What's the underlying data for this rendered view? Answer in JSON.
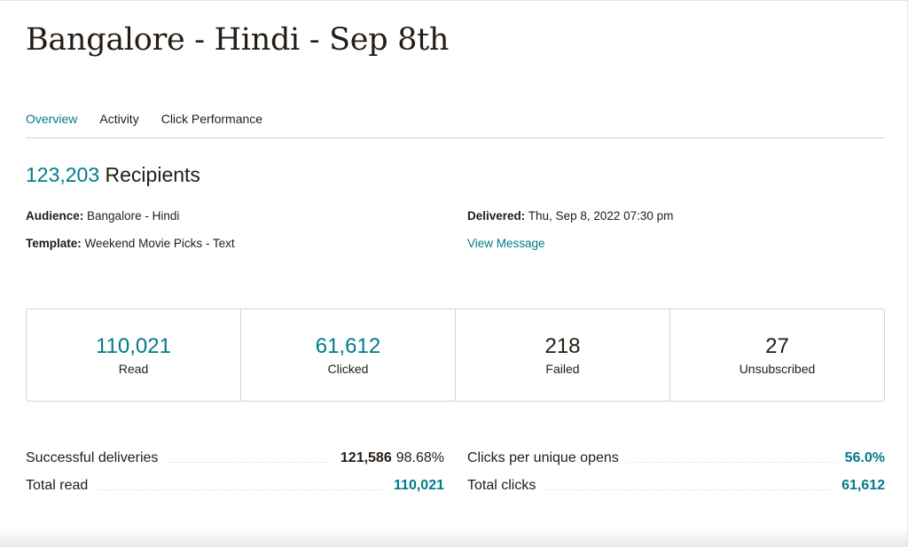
{
  "header": {
    "title": "Bangalore - Hindi - Sep 8th"
  },
  "tabs": [
    {
      "label": "Overview",
      "active": true
    },
    {
      "label": "Activity",
      "active": false
    },
    {
      "label": "Click Performance",
      "active": false
    }
  ],
  "summary": {
    "recipients_count": "123,203",
    "recipients_label": "Recipients",
    "audience_label": "Audience:",
    "audience_value": "Bangalore - Hindi",
    "template_label": "Template:",
    "template_value": "Weekend Movie Picks - Text",
    "delivered_label": "Delivered:",
    "delivered_value": "Thu, Sep 8, 2022 07:30 pm",
    "view_message": "View Message"
  },
  "stats": [
    {
      "value": "110,021",
      "label": "Read"
    },
    {
      "value": "61,612",
      "label": "Clicked"
    },
    {
      "value": "218",
      "label": "Failed"
    },
    {
      "value": "27",
      "label": "Unsubscribed"
    }
  ],
  "details": {
    "successful_deliveries_label": "Successful deliveries",
    "successful_deliveries_value": "121,586",
    "successful_deliveries_pct": "98.68%",
    "total_read_label": "Total read",
    "total_read_value": "110,021",
    "clicks_per_unique_opens_label": "Clicks per unique opens",
    "clicks_per_unique_opens_value": "56.0%",
    "total_clicks_label": "Total clicks",
    "total_clicks_value": "61,612"
  },
  "colors": {
    "accent": "#007c89",
    "text": "#241c15",
    "border": "#d4d4d4"
  }
}
